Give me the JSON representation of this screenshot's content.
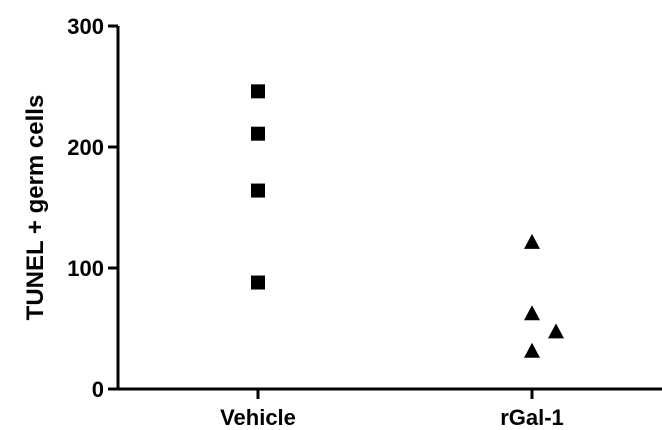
{
  "chart_data": {
    "type": "scatter",
    "title": "",
    "xlabel": "",
    "ylabel": "TUNEL + germ cells",
    "categories": [
      "Vehicle",
      "rGal-1"
    ],
    "ylim": [
      0,
      300
    ],
    "yticks": [
      0,
      100,
      200,
      300
    ],
    "grid": false,
    "series": [
      {
        "category": "Vehicle",
        "marker": "square",
        "values": [
          246,
          211,
          164,
          88
        ]
      },
      {
        "category": "rGal-1",
        "marker": "triangle",
        "values": [
          122,
          63,
          48,
          32
        ]
      }
    ]
  }
}
